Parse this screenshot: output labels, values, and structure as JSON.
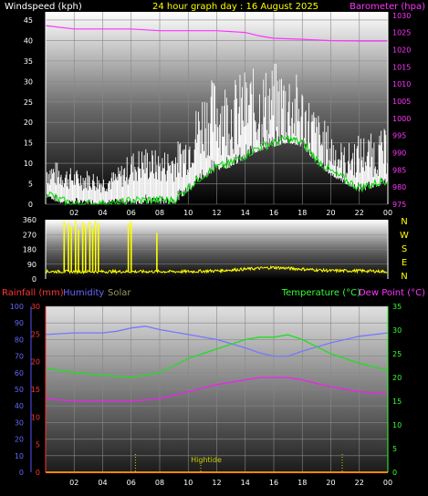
{
  "colors": {
    "wind_label": "#ffffff",
    "title": "#ffff00",
    "baro": "#ff33ff",
    "dir": "#ffff00",
    "rain_label": "#ff3333",
    "hum_label": "#6666ff",
    "solar_label": "#999966",
    "temp_label": "#33ff33",
    "dew_label": "#ff33ff",
    "hightide_label": "#cccc00"
  },
  "chart_data": [
    {
      "type": "line",
      "panel": "top",
      "title": "24 hour graph day : 16 August 2025",
      "left_axis_label": "Windspeed (kph)",
      "right_axis_label": "Barometer (hpa)",
      "x_ticks": [
        "02",
        "04",
        "06",
        "08",
        "10",
        "12",
        "14",
        "16",
        "18",
        "20",
        "22",
        "00"
      ],
      "left_ticks": [
        0,
        5,
        10,
        15,
        20,
        25,
        30,
        35,
        40,
        45
      ],
      "right_ticks": [
        975,
        980,
        985,
        990,
        995,
        1000,
        1005,
        1010,
        1015,
        1020,
        1025,
        1030
      ],
      "ylim_left": [
        0,
        47
      ],
      "ylim_right": [
        975,
        1031
      ],
      "grid": true,
      "series": {
        "gust_hours": [
          0,
          1,
          2,
          3,
          4,
          5,
          6,
          7,
          8,
          9,
          10,
          11,
          12,
          13,
          14,
          15,
          16,
          17,
          18,
          19,
          20,
          21,
          22,
          23,
          24
        ],
        "gust_values": [
          8,
          7,
          6,
          6,
          5,
          6,
          9,
          10,
          9,
          10,
          13,
          20,
          22,
          21,
          23,
          23,
          24,
          24,
          21,
          16,
          13,
          10,
          12,
          12,
          13
        ],
        "avg_hours": [
          0,
          1,
          2,
          3,
          4,
          5,
          6,
          7,
          8,
          9,
          10,
          11,
          12,
          13,
          14,
          15,
          16,
          17,
          18,
          19,
          20,
          21,
          22,
          23,
          24
        ],
        "avg_values": [
          3,
          1,
          0,
          0,
          0,
          0,
          1,
          1,
          1,
          1,
          4,
          7,
          9,
          10,
          12,
          14,
          15,
          16,
          15,
          11,
          8,
          6,
          4,
          5,
          6
        ],
        "baro_hours": [
          0,
          2,
          4,
          6,
          8,
          10,
          12,
          14,
          15,
          16,
          18,
          20,
          22,
          24
        ],
        "baro_values": [
          1027,
          1026,
          1026,
          1026,
          1025.5,
          1025.5,
          1025.5,
          1025,
          1024,
          1023.3,
          1023,
          1022.6,
          1022.5,
          1022.5
        ]
      }
    },
    {
      "type": "scatter",
      "panel": "middle",
      "left_ticks": [
        0,
        90,
        180,
        270,
        360
      ],
      "right_labels": [
        "N",
        "W",
        "S",
        "E",
        "N"
      ],
      "ylim": [
        0,
        360
      ],
      "series": {
        "base_hours": [
          0,
          2,
          4,
          6,
          8,
          10,
          12,
          14,
          16,
          18,
          20,
          22,
          24
        ],
        "base_values": [
          45,
          45,
          45,
          45,
          45,
          45,
          50,
          60,
          70,
          60,
          50,
          50,
          45
        ],
        "spike_hours": [
          1.3,
          1.6,
          1.8,
          2.1,
          2.3,
          2.6,
          2.8,
          3.1,
          3.3,
          3.5,
          3.7,
          5.8,
          6.0,
          7.8
        ],
        "spike_values": [
          350,
          340,
          320,
          355,
          300,
          345,
          330,
          350,
          310,
          355,
          340,
          340,
          350,
          280
        ]
      }
    },
    {
      "type": "line",
      "panel": "bottom",
      "left_label_rain": "Rainfall (mm)",
      "left_label_humidity": "Humidity",
      "label_solar": "Solar",
      "right_label_temp": "Temperature (°C)",
      "right_label_dew": "Dew Point (°C)",
      "annotation": "Hightide",
      "x_ticks": [
        "02",
        "04",
        "06",
        "08",
        "10",
        "12",
        "14",
        "16",
        "18",
        "20",
        "22",
        "00"
      ],
      "humidity_ticks": [
        0,
        10,
        20,
        30,
        40,
        50,
        60,
        70,
        80,
        90,
        100
      ],
      "rain_ticks": [
        0,
        5,
        10,
        15,
        20,
        25,
        30
      ],
      "temp_ticks": [
        0,
        5,
        10,
        15,
        20,
        25,
        30,
        35
      ],
      "ylim_humidity": [
        0,
        100
      ],
      "ylim_rain": [
        0,
        30
      ],
      "ylim_temp": [
        0,
        35
      ],
      "grid": true,
      "series": {
        "hum_hours": [
          0,
          2,
          4,
          5,
          6,
          7,
          8,
          10,
          12,
          14,
          15,
          16,
          17,
          18,
          20,
          22,
          24
        ],
        "hum_values": [
          83,
          84,
          84,
          85,
          87,
          88,
          86,
          83,
          80,
          75,
          72,
          70,
          70,
          73,
          78,
          82,
          84
        ],
        "temp_hours": [
          0,
          2,
          4,
          6,
          8,
          10,
          12,
          13,
          14,
          15,
          16,
          17,
          18,
          20,
          22,
          24
        ],
        "temp_values": [
          22,
          21,
          20.5,
          20,
          21,
          24,
          26,
          27,
          28,
          28.5,
          28.5,
          29,
          28,
          25,
          23,
          21.5
        ],
        "dew_hours": [
          0,
          2,
          4,
          6,
          8,
          10,
          12,
          14,
          15,
          16,
          17,
          18,
          20,
          22,
          24
        ],
        "dew_values": [
          15.5,
          15,
          15,
          15,
          15.5,
          17,
          18.5,
          19.5,
          20,
          20,
          20,
          19.5,
          18,
          17,
          16.5
        ],
        "hightide_hours": [
          6.3,
          20.8
        ],
        "rain_value": 0
      }
    }
  ]
}
